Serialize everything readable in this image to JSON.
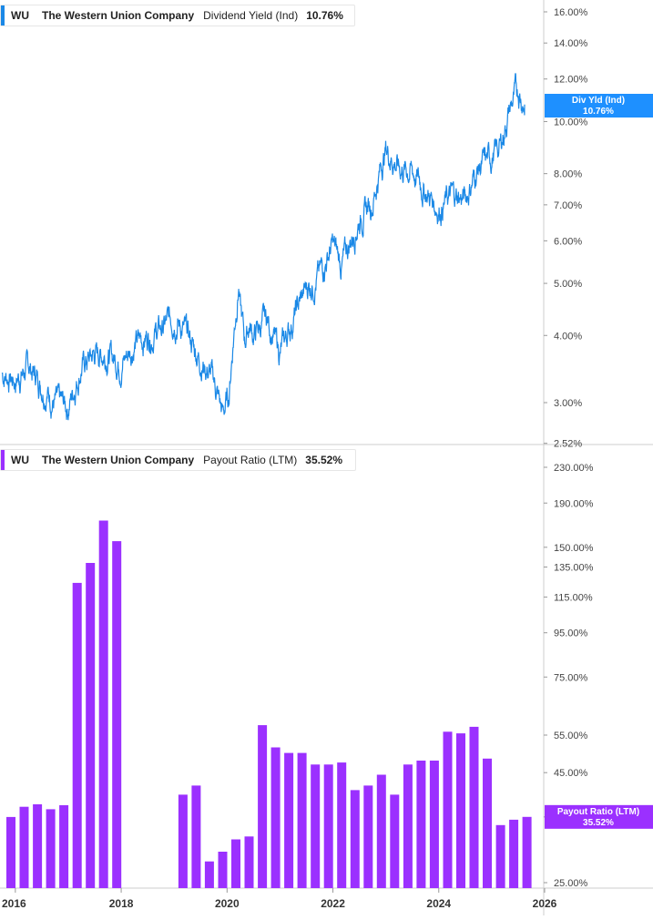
{
  "colors": {
    "yield_line": "#1a88e6",
    "yield_flag": "#1e90ff",
    "payout_bar": "#9b30ff",
    "payout_flag": "#9b30ff",
    "grid": "#d8d8d8"
  },
  "legends": {
    "top": {
      "ticker": "WU",
      "company": "The Western Union Company",
      "metric": "Dividend Yield (Ind)",
      "value": "10.76%"
    },
    "bottom": {
      "ticker": "WU",
      "company": "The Western Union Company",
      "metric": "Payout Ratio (LTM)",
      "value": "35.52%"
    }
  },
  "flags": {
    "top": {
      "label": "Div Yld (Ind)",
      "value": "10.76%"
    },
    "bottom": {
      "label": "Payout Ratio (LTM)",
      "value": "35.52%"
    }
  },
  "x_axis": {
    "ticks": [
      "2016",
      "2018",
      "2020",
      "2022",
      "2024",
      "2026"
    ]
  },
  "chart_data": [
    {
      "type": "line",
      "scale": "log",
      "ylim": [
        2.52,
        16.0
      ],
      "yticks": [
        "16.00%",
        "14.00%",
        "12.00%",
        "10.00%",
        "8.00%",
        "7.00%",
        "6.00%",
        "5.00%",
        "4.00%",
        "3.00%",
        "2.52%"
      ],
      "series": [
        {
          "name": "Dividend Yield (Ind)",
          "x": [
            "2015-10-01",
            "2016-01-01",
            "2016-04-01",
            "2016-07-01",
            "2016-10-01",
            "2017-01-01",
            "2017-04-01",
            "2017-07-01",
            "2017-10-01",
            "2018-01-01",
            "2018-04-01",
            "2018-07-01",
            "2018-10-01",
            "2019-01-01",
            "2019-04-01",
            "2019-07-01",
            "2019-10-01",
            "2019-12-01",
            "2020-01-15",
            "2020-03-20",
            "2020-04-01",
            "2020-05-01",
            "2020-06-01",
            "2020-07-01",
            "2020-10-01",
            "2021-01-01",
            "2021-04-01",
            "2021-07-01",
            "2021-10-01",
            "2022-01-01",
            "2022-03-01",
            "2022-07-01",
            "2022-10-01",
            "2023-01-01",
            "2023-04-01",
            "2023-07-01",
            "2023-10-01",
            "2024-01-01",
            "2024-04-01",
            "2024-07-01",
            "2024-10-01",
            "2025-01-01",
            "2025-03-01",
            "2025-05-01",
            "2025-07-01",
            "2025-08-15"
          ],
          "values": [
            3.4,
            3.3,
            3.5,
            3.25,
            3.0,
            2.95,
            3.5,
            3.7,
            3.7,
            3.55,
            3.85,
            4.0,
            4.1,
            4.35,
            4.0,
            3.6,
            3.3,
            2.85,
            3.1,
            5.0,
            4.5,
            3.9,
            4.2,
            4.0,
            4.3,
            3.7,
            4.3,
            4.9,
            5.2,
            5.9,
            5.4,
            6.6,
            7.1,
            8.9,
            8.2,
            8.1,
            7.4,
            6.9,
            7.3,
            7.2,
            8.2,
            8.6,
            9.0,
            10.5,
            11.5,
            10.76
          ]
        }
      ]
    },
    {
      "type": "bar",
      "scale": "log",
      "ylim": [
        25.0,
        230.0
      ],
      "yticks": [
        "230.00%",
        "190.00%",
        "150.00%",
        "135.00%",
        "115.00%",
        "95.00%",
        "75.00%",
        "55.00%",
        "45.00%",
        "35.52%",
        "25.00%"
      ],
      "series": [
        {
          "name": "Payout Ratio (LTM)",
          "x": [
            "2015-Q4",
            "2016-Q1",
            "2016-Q2",
            "2016-Q3",
            "2016-Q4",
            "2017-Q1",
            "2017-Q2",
            "2017-Q3",
            "2017-Q4",
            "2018-Q1",
            "2018-Q2",
            "2018-Q3",
            "2018-Q4",
            "2019-Q1",
            "2019-Q2",
            "2019-Q3",
            "2019-Q4",
            "2020-Q1",
            "2020-Q2",
            "2020-Q3",
            "2020-Q4",
            "2021-Q1",
            "2021-Q2",
            "2021-Q3",
            "2021-Q4",
            "2022-Q1",
            "2022-Q2",
            "2022-Q3",
            "2022-Q4",
            "2023-Q1",
            "2023-Q2",
            "2023-Q3",
            "2023-Q4",
            "2024-Q1",
            "2024-Q2",
            "2024-Q3",
            "2024-Q4",
            "2025-Q1",
            "2025-Q2",
            "2025-Q3"
          ],
          "values": [
            35.5,
            37.5,
            38.0,
            37.0,
            37.8,
            124.0,
            138.0,
            173.0,
            155.0,
            null,
            null,
            null,
            null,
            40.0,
            42.0,
            28.0,
            29.5,
            31.5,
            32.0,
            58.0,
            51.5,
            50.0,
            50.0,
            47.0,
            47.0,
            47.5,
            41.0,
            42.0,
            44.5,
            40.0,
            47.0,
            48.0,
            48.0,
            56.0,
            55.5,
            57.5,
            48.5,
            34.0,
            35.0,
            35.52
          ]
        }
      ]
    }
  ]
}
